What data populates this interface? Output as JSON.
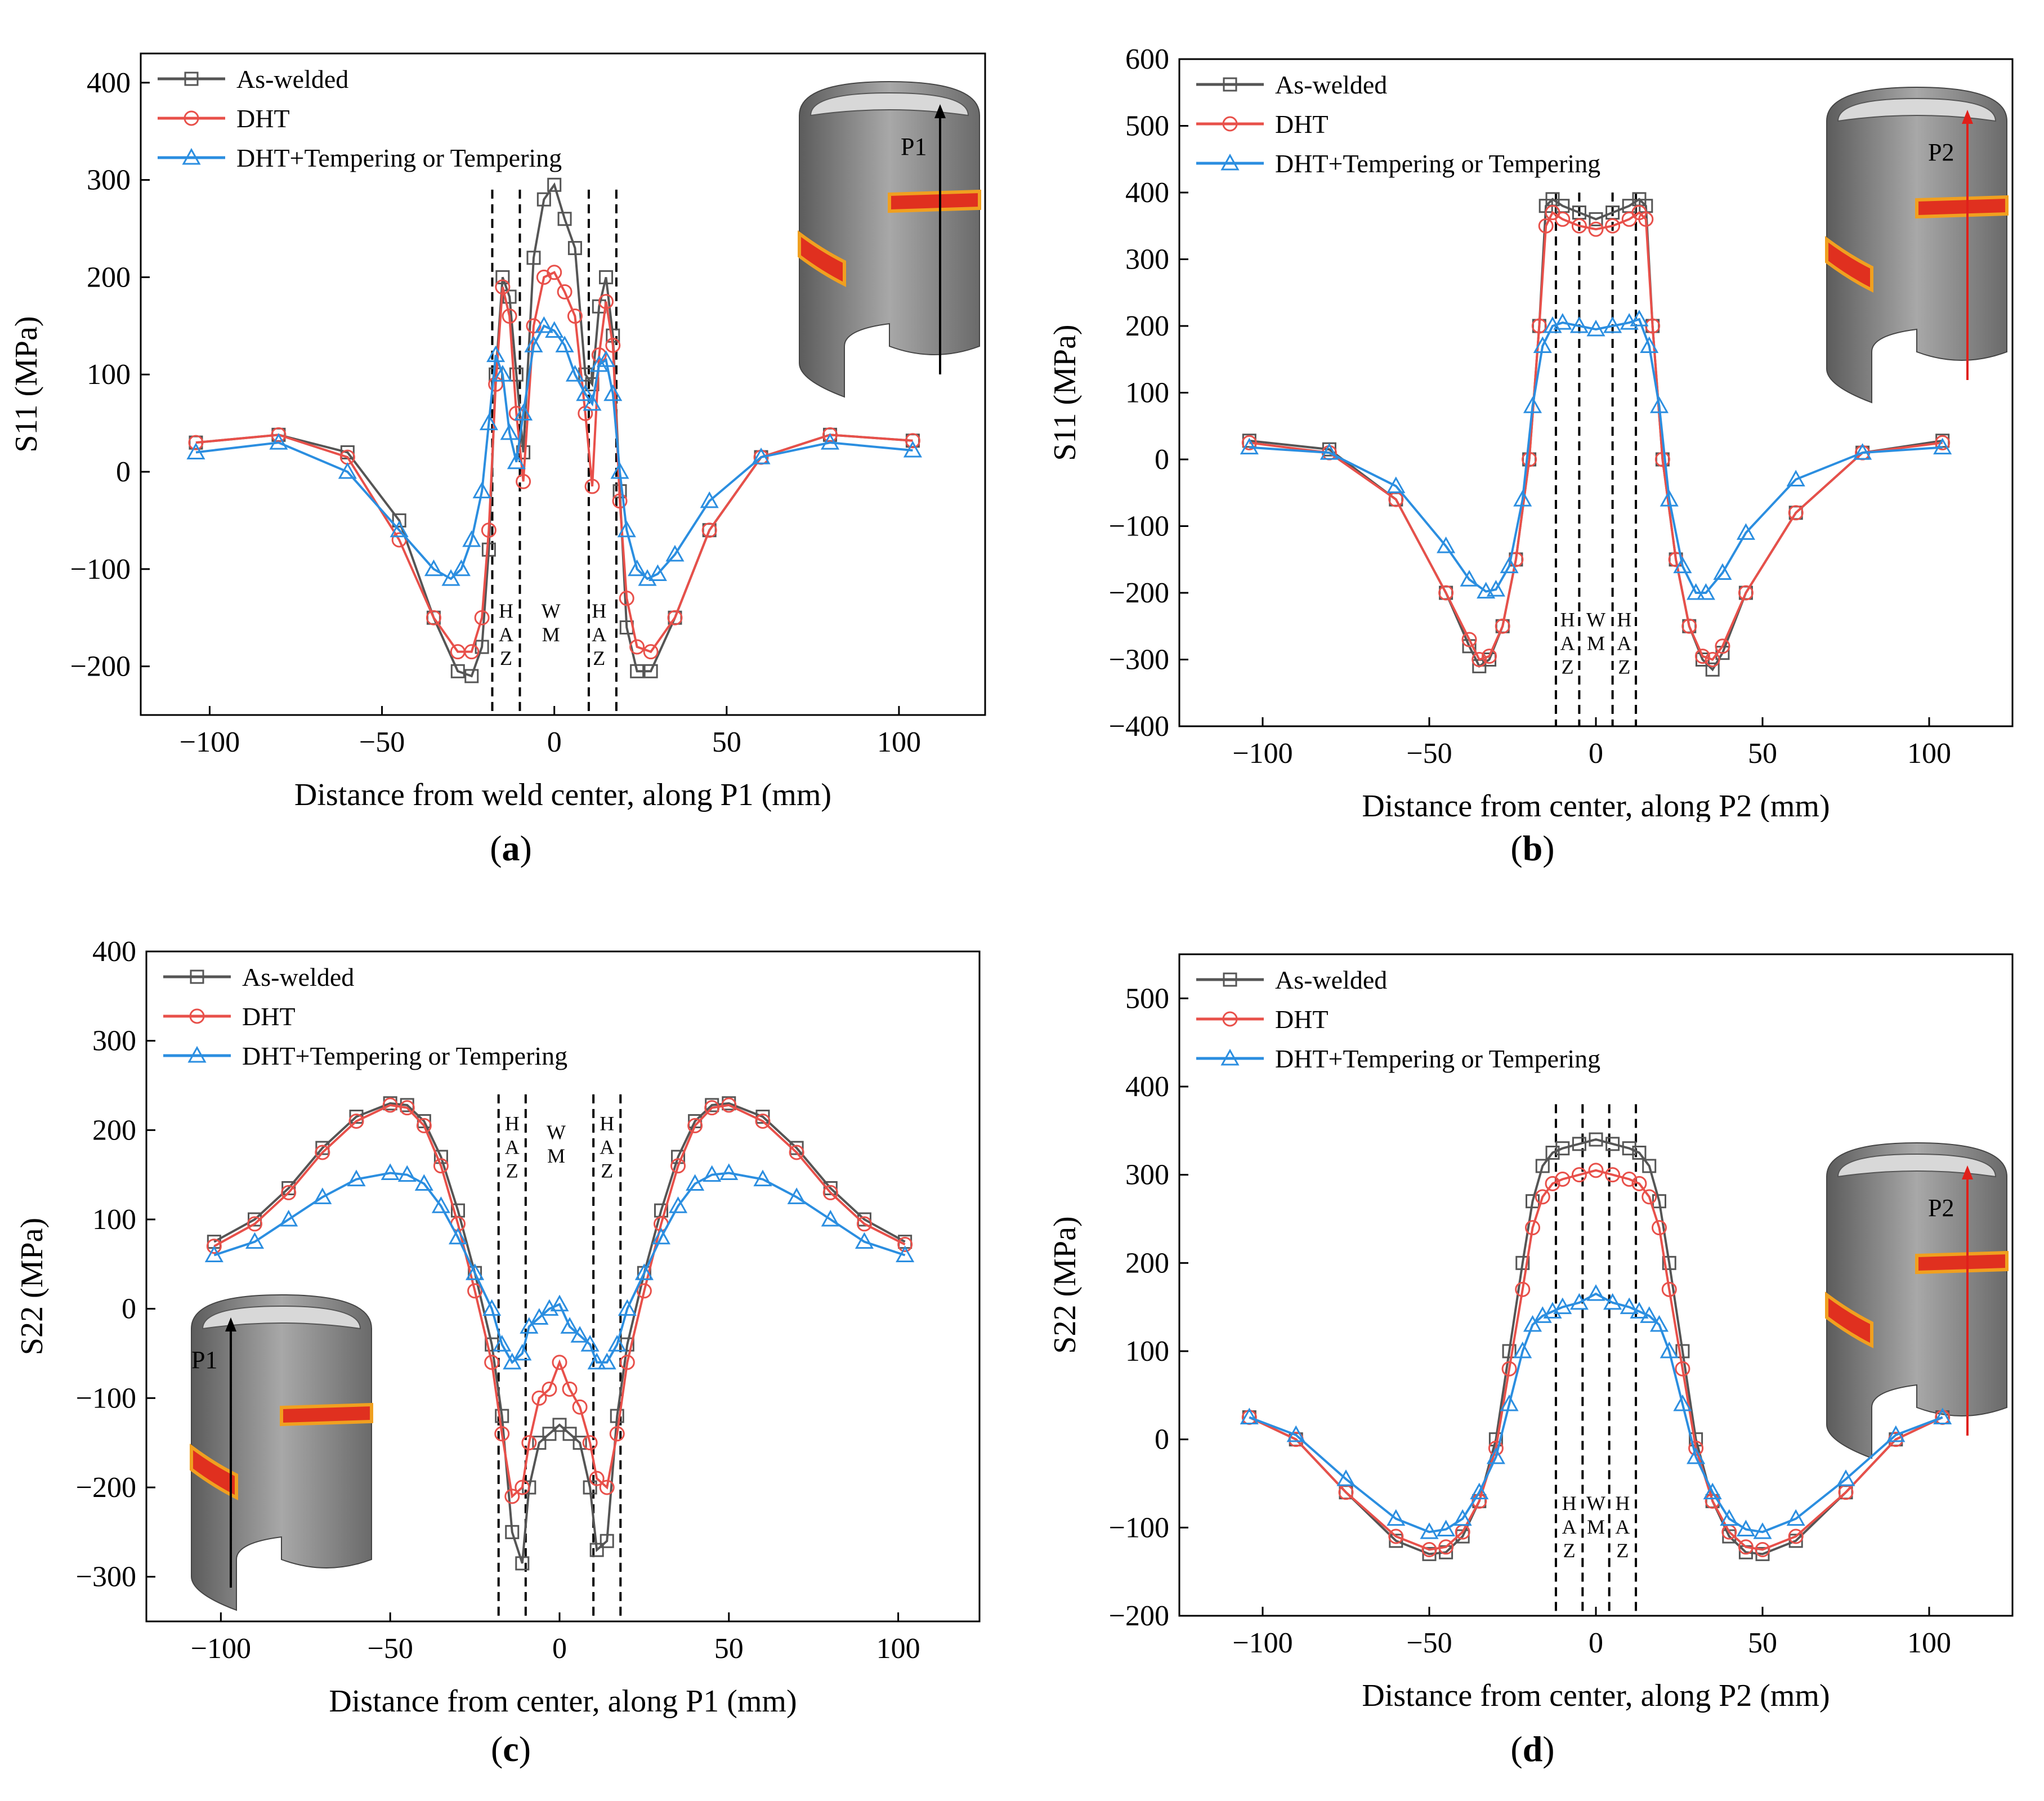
{
  "chart_data": [
    {
      "type": "line",
      "panel": "(a)",
      "panel_letter": "a",
      "xlabel": "Distance from weld center, along P1 (mm)",
      "ylabel": "S11 (MPa)",
      "xlim": [
        -120,
        125
      ],
      "ylim": [
        -250,
        430
      ],
      "xticks": [
        -100,
        -50,
        0,
        50,
        100
      ],
      "yticks": [
        -200,
        -100,
        0,
        100,
        200,
        300,
        400
      ],
      "legend_position": "top-left",
      "zone_lines": [
        -18,
        -10,
        10,
        18
      ],
      "zone_labels": [
        {
          "x": -14,
          "text": "H A Z",
          "y": -150
        },
        {
          "x": -1,
          "text": "W M",
          "y": -150
        },
        {
          "x": 13,
          "text": "H A Z",
          "y": -150
        }
      ],
      "inset": {
        "label": "P1",
        "arrow_color": "#000000",
        "position": "top-right"
      },
      "series": [
        {
          "name": "As-welded",
          "color": "#555555",
          "marker": "square",
          "x": [
            -104,
            -80,
            -60,
            -45,
            -35,
            -28,
            -24,
            -21,
            -19,
            -17,
            -15,
            -13,
            -11,
            -9,
            -6,
            -3,
            0,
            3,
            6,
            9,
            11,
            13,
            15,
            17,
            19,
            21,
            24,
            28,
            35,
            45,
            60,
            80,
            104
          ],
          "y": [
            30,
            38,
            20,
            -50,
            -150,
            -205,
            -210,
            -180,
            -80,
            100,
            200,
            180,
            100,
            20,
            220,
            280,
            295,
            260,
            230,
            100,
            90,
            170,
            200,
            140,
            -20,
            -160,
            -205,
            -205,
            -150,
            -60,
            15,
            38,
            32
          ]
        },
        {
          "name": "DHT",
          "color": "#e8504a",
          "marker": "circle",
          "x": [
            -104,
            -80,
            -60,
            -45,
            -35,
            -28,
            -24,
            -21,
            -19,
            -17,
            -15,
            -13,
            -11,
            -9,
            -6,
            -3,
            0,
            3,
            6,
            9,
            11,
            13,
            15,
            17,
            19,
            21,
            24,
            28,
            35,
            45,
            60,
            80,
            104
          ],
          "y": [
            30,
            38,
            15,
            -70,
            -150,
            -185,
            -185,
            -150,
            -60,
            90,
            190,
            160,
            60,
            -10,
            150,
            200,
            205,
            185,
            160,
            60,
            -15,
            120,
            175,
            130,
            -30,
            -130,
            -180,
            -185,
            -150,
            -60,
            15,
            38,
            32
          ]
        },
        {
          "name": "DHT+Tempering or Tempering",
          "color": "#2b8ee0",
          "marker": "triangle",
          "x": [
            -104,
            -80,
            -60,
            -45,
            -35,
            -30,
            -27,
            -24,
            -21,
            -19,
            -17,
            -15,
            -13,
            -11,
            -9,
            -6,
            -3,
            0,
            3,
            6,
            9,
            11,
            13,
            15,
            17,
            19,
            21,
            24,
            27,
            30,
            35,
            45,
            60,
            80,
            104
          ],
          "y": [
            20,
            30,
            0,
            -60,
            -100,
            -110,
            -100,
            -70,
            -20,
            50,
            120,
            100,
            40,
            10,
            60,
            130,
            150,
            145,
            130,
            100,
            80,
            70,
            110,
            115,
            80,
            0,
            -60,
            -100,
            -110,
            -105,
            -85,
            -30,
            15,
            30,
            22
          ]
        }
      ]
    },
    {
      "type": "line",
      "panel": "(b)",
      "panel_letter": "b",
      "xlabel": "Distance from center, along P2 (mm)",
      "ylabel": "S11 (MPa)",
      "xlim": [
        -125,
        125
      ],
      "ylim": [
        -400,
        600
      ],
      "xticks": [
        -100,
        -50,
        0,
        50,
        100
      ],
      "yticks": [
        -400,
        -300,
        -200,
        -100,
        0,
        100,
        200,
        300,
        400,
        500,
        600
      ],
      "legend_position": "top-left",
      "zone_lines": [
        -12,
        -5,
        5,
        12
      ],
      "zone_labels": [
        {
          "x": -8.5,
          "text": "H A Z",
          "y": -250
        },
        {
          "x": 0,
          "text": "W M",
          "y": -250
        },
        {
          "x": 8.5,
          "text": "H A Z",
          "y": -250
        }
      ],
      "inset": {
        "label": "P2",
        "arrow_color": "#e0201a",
        "position": "top-right"
      },
      "series": [
        {
          "name": "As-welded",
          "color": "#555555",
          "marker": "square",
          "x": [
            -104,
            -80,
            -60,
            -45,
            -38,
            -35,
            -32,
            -28,
            -24,
            -20,
            -17,
            -15,
            -13,
            -10,
            -5,
            0,
            5,
            10,
            13,
            15,
            17,
            20,
            24,
            28,
            32,
            35,
            38,
            45,
            60,
            80,
            104
          ],
          "y": [
            28,
            15,
            -60,
            -200,
            -280,
            -310,
            -300,
            -250,
            -150,
            0,
            200,
            380,
            390,
            380,
            370,
            360,
            370,
            380,
            390,
            380,
            200,
            0,
            -150,
            -250,
            -300,
            -315,
            -290,
            -200,
            -80,
            10,
            28
          ]
        },
        {
          "name": "DHT",
          "color": "#e8504a",
          "marker": "circle",
          "x": [
            -104,
            -80,
            -60,
            -45,
            -38,
            -35,
            -32,
            -28,
            -24,
            -20,
            -17,
            -15,
            -13,
            -10,
            -5,
            0,
            5,
            10,
            13,
            15,
            17,
            20,
            24,
            28,
            32,
            35,
            38,
            45,
            60,
            80,
            104
          ],
          "y": [
            25,
            10,
            -60,
            -200,
            -270,
            -300,
            -295,
            -250,
            -150,
            0,
            200,
            350,
            370,
            360,
            350,
            345,
            350,
            360,
            370,
            360,
            200,
            0,
            -150,
            -250,
            -295,
            -300,
            -280,
            -200,
            -80,
            10,
            25
          ]
        },
        {
          "name": "DHT+Tempering or Tempering",
          "color": "#2b8ee0",
          "marker": "triangle",
          "x": [
            -104,
            -80,
            -60,
            -45,
            -38,
            -33,
            -30,
            -26,
            -22,
            -19,
            -16,
            -13,
            -10,
            -5,
            0,
            5,
            10,
            13,
            16,
            19,
            22,
            26,
            30,
            33,
            38,
            45,
            60,
            80,
            104
          ],
          "y": [
            18,
            10,
            -40,
            -130,
            -180,
            -198,
            -195,
            -160,
            -60,
            80,
            170,
            200,
            205,
            200,
            195,
            200,
            205,
            210,
            170,
            80,
            -60,
            -160,
            -200,
            -200,
            -170,
            -110,
            -30,
            10,
            18
          ]
        }
      ]
    },
    {
      "type": "line",
      "panel": "(c)",
      "panel_letter": "c",
      "xlabel": "Distance from center, along P1 (mm)",
      "ylabel": "S22 (MPa)",
      "xlim": [
        -122,
        124
      ],
      "ylim": [
        -350,
        400
      ],
      "xticks": [
        -100,
        -50,
        0,
        50,
        100
      ],
      "yticks": [
        -300,
        -200,
        -100,
        0,
        100,
        200,
        300,
        400
      ],
      "legend_position": "top-left",
      "zone_lines": [
        -18,
        -10,
        10,
        18
      ],
      "zone_labels": [
        {
          "x": -14,
          "text": "H A Z",
          "y": 200
        },
        {
          "x": -1,
          "text": "W M",
          "y": 190
        },
        {
          "x": 14,
          "text": "H A Z",
          "y": 200
        }
      ],
      "inset": {
        "label": "P1",
        "arrow_color": "#000000",
        "position": "bottom-left"
      },
      "series": [
        {
          "name": "As-welded",
          "color": "#555555",
          "marker": "square",
          "x": [
            -102,
            -90,
            -80,
            -70,
            -60,
            -50,
            -45,
            -40,
            -35,
            -30,
            -25,
            -20,
            -17,
            -14,
            -11,
            -9,
            -6,
            -3,
            0,
            3,
            6,
            9,
            11,
            14,
            17,
            20,
            25,
            30,
            35,
            40,
            45,
            50,
            60,
            70,
            80,
            90,
            102
          ],
          "y": [
            75,
            100,
            135,
            180,
            215,
            230,
            228,
            210,
            170,
            110,
            40,
            -40,
            -120,
            -250,
            -285,
            -200,
            -150,
            -140,
            -130,
            -140,
            -150,
            -200,
            -270,
            -260,
            -120,
            -40,
            40,
            110,
            170,
            210,
            228,
            230,
            215,
            180,
            135,
            100,
            75
          ]
        },
        {
          "name": "DHT",
          "color": "#e8504a",
          "marker": "circle",
          "x": [
            -102,
            -90,
            -80,
            -70,
            -60,
            -50,
            -45,
            -40,
            -35,
            -30,
            -25,
            -20,
            -17,
            -14,
            -11,
            -9,
            -6,
            -3,
            0,
            3,
            6,
            9,
            11,
            14,
            17,
            20,
            25,
            30,
            35,
            40,
            45,
            50,
            60,
            70,
            80,
            90,
            102
          ],
          "y": [
            70,
            95,
            130,
            175,
            210,
            228,
            225,
            205,
            160,
            95,
            20,
            -60,
            -140,
            -210,
            -200,
            -150,
            -100,
            -90,
            -60,
            -90,
            -110,
            -150,
            -190,
            -200,
            -140,
            -60,
            20,
            95,
            160,
            205,
            225,
            228,
            210,
            175,
            130,
            95,
            72
          ]
        },
        {
          "name": "DHT+Tempering or Tempering",
          "color": "#2b8ee0",
          "marker": "triangle",
          "x": [
            -102,
            -90,
            -80,
            -70,
            -60,
            -50,
            -45,
            -40,
            -35,
            -30,
            -25,
            -20,
            -17,
            -14,
            -11,
            -9,
            -6,
            -3,
            0,
            3,
            6,
            9,
            11,
            14,
            17,
            20,
            25,
            30,
            35,
            40,
            45,
            50,
            60,
            70,
            80,
            90,
            102
          ],
          "y": [
            60,
            75,
            100,
            125,
            145,
            152,
            150,
            140,
            115,
            80,
            40,
            0,
            -40,
            -60,
            -50,
            -20,
            -10,
            0,
            5,
            -20,
            -30,
            -40,
            -60,
            -60,
            -40,
            0,
            40,
            80,
            115,
            140,
            150,
            152,
            145,
            125,
            100,
            75,
            60
          ]
        }
      ]
    },
    {
      "type": "line",
      "panel": "(d)",
      "panel_letter": "d",
      "xlabel": "Distance from center, along P2 (mm)",
      "ylabel": "S22 (MPa)",
      "xlim": [
        -125,
        125
      ],
      "ylim": [
        -200,
        550
      ],
      "xticks": [
        -100,
        -50,
        0,
        50,
        100
      ],
      "yticks": [
        -200,
        -100,
        0,
        100,
        200,
        300,
        400,
        500
      ],
      "legend_position": "top-left",
      "zone_lines": [
        -12,
        -4,
        4,
        12
      ],
      "zone_labels": [
        {
          "x": -8,
          "text": "H A Z",
          "y": -80
        },
        {
          "x": 0,
          "text": "W M",
          "y": -80
        },
        {
          "x": 8,
          "text": "H A Z",
          "y": -80
        }
      ],
      "inset": {
        "label": "P2",
        "arrow_color": "#e0201a",
        "position": "right"
      },
      "series": [
        {
          "name": "As-welded",
          "color": "#555555",
          "marker": "square",
          "x": [
            -104,
            -90,
            -75,
            -60,
            -50,
            -45,
            -40,
            -35,
            -30,
            -26,
            -22,
            -19,
            -16,
            -13,
            -10,
            -5,
            0,
            5,
            10,
            13,
            16,
            19,
            22,
            26,
            30,
            35,
            40,
            45,
            50,
            60,
            75,
            90,
            104
          ],
          "y": [
            25,
            0,
            -60,
            -115,
            -130,
            -128,
            -110,
            -70,
            0,
            100,
            200,
            270,
            310,
            325,
            330,
            335,
            340,
            335,
            330,
            325,
            310,
            270,
            200,
            100,
            0,
            -70,
            -110,
            -128,
            -130,
            -115,
            -60,
            0,
            25
          ]
        },
        {
          "name": "DHT",
          "color": "#e8504a",
          "marker": "circle",
          "x": [
            -104,
            -90,
            -75,
            -60,
            -50,
            -45,
            -40,
            -35,
            -30,
            -26,
            -22,
            -19,
            -16,
            -13,
            -10,
            -5,
            0,
            5,
            10,
            13,
            16,
            19,
            22,
            26,
            30,
            35,
            40,
            45,
            50,
            60,
            75,
            90,
            104
          ],
          "y": [
            25,
            0,
            -60,
            -110,
            -125,
            -122,
            -105,
            -70,
            -10,
            80,
            170,
            240,
            275,
            290,
            295,
            300,
            305,
            300,
            295,
            290,
            275,
            240,
            170,
            80,
            -10,
            -70,
            -105,
            -122,
            -125,
            -110,
            -60,
            0,
            25
          ]
        },
        {
          "name": "DHT+Tempering or Tempering",
          "color": "#2b8ee0",
          "marker": "triangle",
          "x": [
            -104,
            -90,
            -75,
            -60,
            -50,
            -45,
            -40,
            -35,
            -30,
            -26,
            -22,
            -19,
            -16,
            -13,
            -10,
            -5,
            0,
            5,
            10,
            13,
            16,
            19,
            22,
            26,
            30,
            35,
            40,
            45,
            50,
            60,
            75,
            90,
            104
          ],
          "y": [
            25,
            5,
            -45,
            -90,
            -105,
            -102,
            -90,
            -60,
            -20,
            40,
            100,
            130,
            140,
            145,
            150,
            155,
            165,
            155,
            150,
            145,
            140,
            130,
            100,
            40,
            -20,
            -60,
            -90,
            -102,
            -105,
            -90,
            -45,
            5,
            25
          ]
        }
      ]
    }
  ]
}
